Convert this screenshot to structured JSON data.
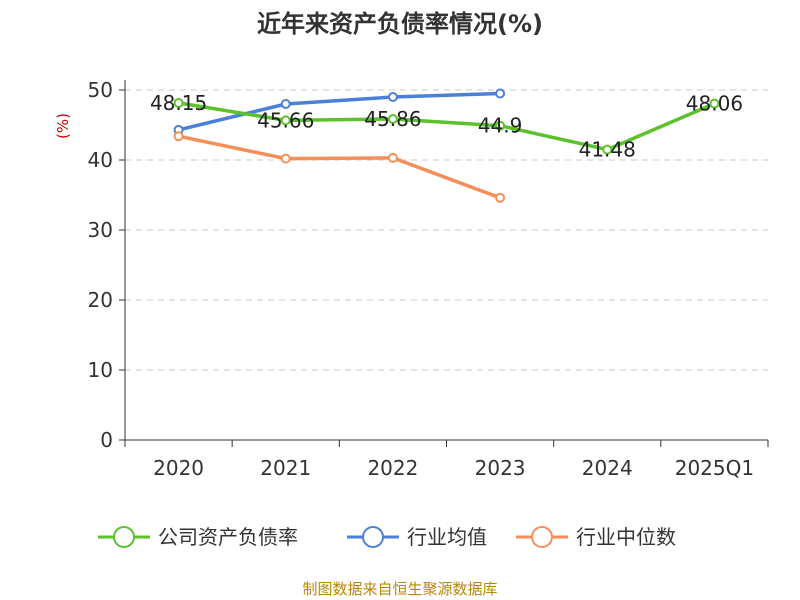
{
  "chart_data": {
    "type": "line",
    "title": "近年来资产负债率情况(%)",
    "ylabel": "(%)",
    "xlabel": "",
    "categories": [
      "2020",
      "2021",
      "2022",
      "2023",
      "2024",
      "2025Q1"
    ],
    "ylim": [
      0,
      50
    ],
    "yticks": [
      0,
      10,
      20,
      30,
      40,
      50
    ],
    "grid": true,
    "legend_position": "bottom",
    "series": [
      {
        "name": "公司资产负债率",
        "color": "#5cc12b",
        "values": [
          48.15,
          45.66,
          45.86,
          44.9,
          41.48,
          48.06
        ],
        "labels": [
          "48.15",
          "45.66",
          "45.86",
          "44.9",
          "41.48",
          "48.06"
        ]
      },
      {
        "name": "行业均值",
        "color": "#4b7fd9",
        "values": [
          44.3,
          48.0,
          49.0,
          49.5,
          null,
          null
        ]
      },
      {
        "name": "行业中位数",
        "color": "#f58f5a",
        "values": [
          43.4,
          40.2,
          40.3,
          34.6,
          null,
          null
        ]
      }
    ]
  },
  "source": "制图数据来自恒生聚源数据库"
}
